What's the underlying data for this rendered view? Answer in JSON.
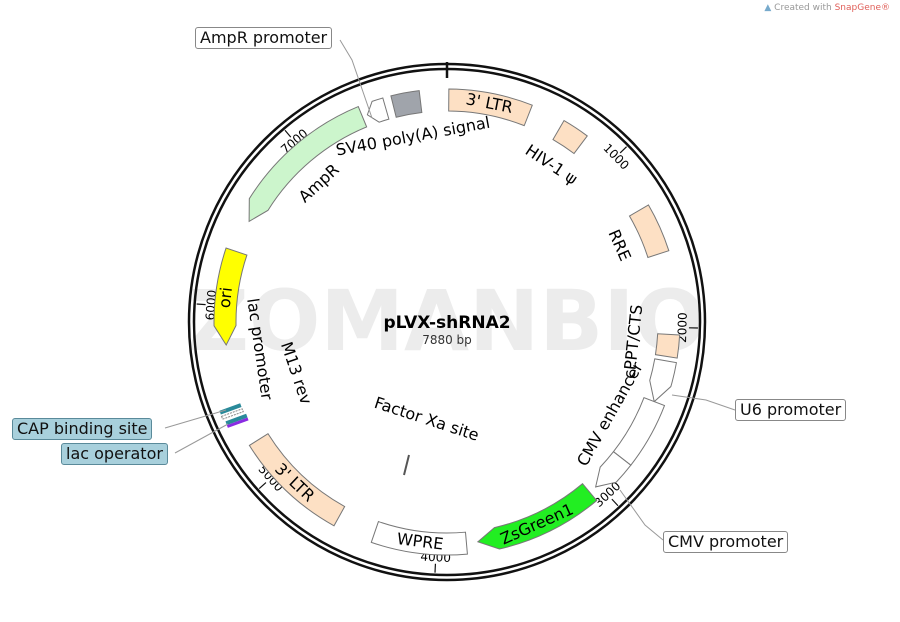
{
  "credit": {
    "prefix": "Created with ",
    "brand": "SnapGene®"
  },
  "watermark": "ZOMANBIO",
  "plasmid": {
    "name": "pLVX-shRNA2",
    "length_label": "7880 bp",
    "length_bp": 7880
  },
  "ticks": [
    {
      "bp": 1000,
      "label": "1000"
    },
    {
      "bp": 2000,
      "label": "2000"
    },
    {
      "bp": 3000,
      "label": "3000"
    },
    {
      "bp": 4000,
      "label": "4000"
    },
    {
      "bp": 5000,
      "label": "5000"
    },
    {
      "bp": 6000,
      "label": "6000"
    },
    {
      "bp": 7000,
      "label": "7000"
    }
  ],
  "features": [
    {
      "name": "3' LTR",
      "start": 10,
      "end": 470,
      "type": "box",
      "color": "#fde0c4",
      "label_inside": true
    },
    {
      "name": "HIV-1 ψ",
      "start": 660,
      "end": 810,
      "type": "box",
      "color": "#fde0c4",
      "label_inside": false
    },
    {
      "name": "RRE",
      "start": 1310,
      "end": 1580,
      "type": "box",
      "color": "#fde0c4",
      "label_inside": false
    },
    {
      "name": "cPPT/CTS",
      "start": 2040,
      "end": 2165,
      "type": "box",
      "color": "#fde0c4",
      "label_inside": false
    },
    {
      "name": "U6 promoter",
      "start": 2190,
      "end": 2430,
      "type": "fwd",
      "color": "#ffffff",
      "callout": true
    },
    {
      "name": "CMV enhancer",
      "start": 2430,
      "end": 2800,
      "type": "box",
      "color": "#ffffff",
      "label_inside": false
    },
    {
      "name": "CMV promoter",
      "start": 2800,
      "end": 3020,
      "type": "fwd",
      "color": "#ffffff",
      "callout": true
    },
    {
      "name": "ZsGreen1",
      "start": 3065,
      "end": 3765,
      "type": "fwd",
      "color": "#22ee22",
      "label_inside": true
    },
    {
      "name": "WPRE",
      "start": 3830,
      "end": 4355,
      "type": "box",
      "color": "#ffffff",
      "label_inside": true
    },
    {
      "name": "3' LTR",
      "start": 4575,
      "end": 5210,
      "type": "box",
      "color": "#fde0c4",
      "label_inside": true
    },
    {
      "name": "ori",
      "start": 5780,
      "end": 6315,
      "type": "rev",
      "color": "#ffff00",
      "label_inside": true
    },
    {
      "name": "AmpR",
      "start": 6500,
      "end": 7390,
      "type": "rev",
      "color": "#ccf5cc",
      "label_inside": false
    },
    {
      "name": "AmpR promoter",
      "start": 7420,
      "end": 7530,
      "type": "rev",
      "color": "#ffffff",
      "callout": true
    },
    {
      "name": "SV40 poly(A) signal",
      "start": 7575,
      "end": 7730,
      "type": "box",
      "color": "#a0a4ab",
      "label_inside": false
    }
  ],
  "inner_labels": [
    {
      "text": "lac promoter",
      "bp": 5730
    },
    {
      "text": "M13 rev",
      "bp": 5500
    },
    {
      "text": "Factor Xa site",
      "bp": 4200
    }
  ],
  "callouts": {
    "ampr_promoter": "AmpR promoter",
    "u6_promoter": "U6 promoter",
    "cmv_promoter": "CMV promoter",
    "cap_binding_site": "CAP binding site",
    "lac_operator": "lac operator"
  },
  "colors": {
    "cap": "#2a8a9a",
    "lac_operator": "#8a2be2",
    "callout_blue": "#a8d0dc"
  }
}
